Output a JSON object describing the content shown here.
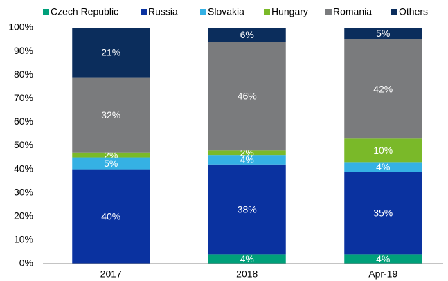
{
  "chart_data": {
    "type": "stacked_bar",
    "categories": [
      "2017",
      "2018",
      "Apr-19"
    ],
    "series": [
      {
        "name": "Czech Republic",
        "color": "#00a07a",
        "values": [
          0,
          4,
          4
        ],
        "value_labels": [
          null,
          "4%",
          "4%"
        ]
      },
      {
        "name": "Russia",
        "color": "#0a32a0",
        "values": [
          40,
          38,
          35
        ],
        "value_labels": [
          "40%",
          "38%",
          "35%"
        ]
      },
      {
        "name": "Slovakia",
        "color": "#35b1e4",
        "values": [
          5,
          4,
          4
        ],
        "value_labels": [
          "5%",
          "4%",
          "4%"
        ]
      },
      {
        "name": "Hungary",
        "color": "#7ab929",
        "values": [
          2,
          2,
          10
        ],
        "value_labels": [
          "2%",
          "2%",
          "10%"
        ]
      },
      {
        "name": "Romania",
        "color": "#7a7b7d",
        "values": [
          32,
          46,
          42
        ],
        "value_labels": [
          "32%",
          "46%",
          "42%"
        ]
      },
      {
        "name": "Others",
        "color": "#0b2d5c",
        "values": [
          21,
          6,
          5
        ],
        "value_labels": [
          "21%",
          "6%",
          "5%"
        ]
      }
    ],
    "ylim": [
      0,
      100
    ],
    "yticks": [
      {
        "value": 0,
        "label": "0%"
      },
      {
        "value": 10,
        "label": "10%"
      },
      {
        "value": 20,
        "label": "20%"
      },
      {
        "value": 30,
        "label": "30%"
      },
      {
        "value": 40,
        "label": "40%"
      },
      {
        "value": 50,
        "label": "50%"
      },
      {
        "value": 60,
        "label": "60%"
      },
      {
        "value": 70,
        "label": "70%"
      },
      {
        "value": 80,
        "label": "80%"
      },
      {
        "value": 90,
        "label": "90%"
      },
      {
        "value": 100,
        "label": "100%"
      }
    ],
    "grid": false,
    "legend": "top"
  }
}
